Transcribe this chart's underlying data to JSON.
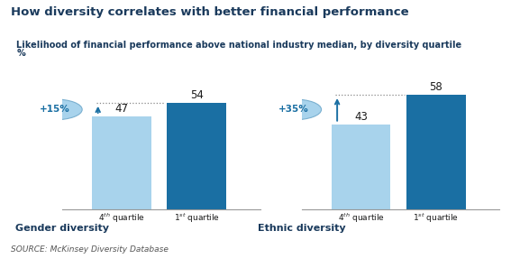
{
  "title": "How diversity correlates with better financial performance",
  "subtitle_line1": "Likelihood of financial performance above national industry median, by diversity quartile",
  "subtitle_line2": "%",
  "source": "SOURCE: McKinsey Diversity Database",
  "groups": [
    {
      "name": "Gender diversity",
      "bar4_val": 47,
      "bar1_val": 54,
      "pct_label": "+15%",
      "color_4th": "#a8d3ec",
      "color_1st": "#1a6fa3"
    },
    {
      "name": "Ethnic diversity",
      "bar4_val": 43,
      "bar1_val": 58,
      "pct_label": "+35%",
      "color_4th": "#a8d3ec",
      "color_1st": "#1a6fa3"
    }
  ],
  "bg_color": "#ffffff",
  "subtitle_bg": "#b8d9ee",
  "ylim": [
    0,
    68
  ],
  "arrow_color": "#1a6fa3",
  "ellipse_color": "#a8d3ec",
  "ellipse_edge": "#7ab0d0"
}
